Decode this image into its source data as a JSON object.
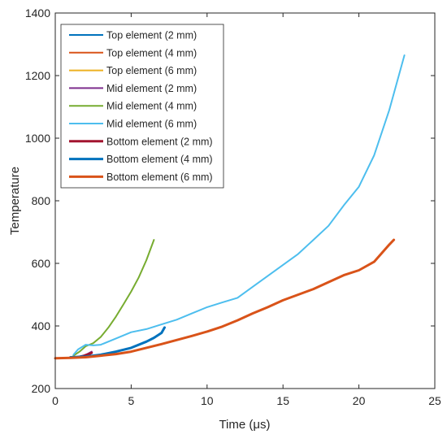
{
  "chart_data": {
    "type": "line",
    "title": "",
    "xlabel": "Time (μs)",
    "ylabel": "Temperature",
    "xlim": [
      0,
      25
    ],
    "ylim": [
      200,
      1400
    ],
    "xticks": [
      0,
      5,
      10,
      15,
      20,
      25
    ],
    "yticks": [
      200,
      400,
      600,
      800,
      1000,
      1200,
      1400
    ],
    "grid": false,
    "legend_position": "top-left",
    "series": [
      {
        "name": "Top element (2 mm)",
        "color": "#0072BD",
        "width": 2,
        "x": [
          1.2,
          1.6,
          2.0,
          2.3
        ],
        "y": [
          300,
          303,
          307,
          310
        ]
      },
      {
        "name": "Top element (4 mm)",
        "color": "#D95319",
        "width": 2,
        "x": [
          1.5,
          1.8,
          2.1,
          2.3
        ],
        "y": [
          300,
          302,
          305,
          307
        ]
      },
      {
        "name": "Top element (6 mm)",
        "color": "#EDB120",
        "width": 2,
        "x": [
          1.5,
          1.8,
          2.1
        ],
        "y": [
          300,
          301,
          303
        ]
      },
      {
        "name": "Mid element (2 mm)",
        "color": "#7E2F8E",
        "width": 2,
        "x": [
          1.5,
          1.8,
          2.1,
          2.4
        ],
        "y": [
          300,
          304,
          310,
          318
        ]
      },
      {
        "name": "Mid element (4 mm)",
        "color": "#77AC30",
        "width": 2,
        "x": [
          1.2,
          1.6,
          2.0,
          2.5,
          3.0,
          3.5,
          4.0,
          4.5,
          5.0,
          5.5,
          6.0,
          6.5
        ],
        "y": [
          305,
          318,
          335,
          345,
          365,
          395,
          430,
          470,
          510,
          555,
          610,
          675
        ]
      },
      {
        "name": "Mid element (6 mm)",
        "color": "#4DBEEE",
        "width": 2,
        "x": [
          1.2,
          1.5,
          2.0,
          2.5,
          3.0,
          4.0,
          5.0,
          6.0,
          7.0,
          8.0,
          9.0,
          10.0,
          11.0,
          12.0,
          13.0,
          14.0,
          15.0,
          16.0,
          17.0,
          18.0,
          19.0,
          20.0,
          21.0,
          22.0,
          23.0
        ],
        "y": [
          308,
          325,
          340,
          338,
          340,
          360,
          380,
          390,
          405,
          420,
          440,
          460,
          475,
          490,
          525,
          560,
          595,
          630,
          675,
          720,
          785,
          845,
          945,
          1090,
          1265
        ]
      },
      {
        "name": "Bottom element (2 mm)",
        "color": "#A2142F",
        "width": 3,
        "x": [
          1.5,
          1.8,
          2.1,
          2.4
        ],
        "y": [
          300,
          303,
          308,
          314
        ]
      },
      {
        "name": "Bottom element (4 mm)",
        "color": "#0072BD",
        "width": 3,
        "x": [
          1.0,
          2.0,
          3.0,
          4.0,
          5.0,
          6.0,
          6.5,
          7.0,
          7.2
        ],
        "y": [
          300,
          302,
          308,
          318,
          330,
          350,
          362,
          378,
          395
        ]
      },
      {
        "name": "Bottom element (6 mm)",
        "color": "#D95319",
        "width": 3,
        "x": [
          0,
          1.0,
          2.0,
          3.0,
          4.0,
          5.0,
          6.0,
          7.0,
          8.0,
          9.0,
          10.0,
          11.0,
          12.0,
          13.0,
          14.0,
          15.0,
          16.0,
          17.0,
          18.0,
          19.0,
          20.0,
          21.0,
          22.0,
          22.3
        ],
        "y": [
          297,
          298,
          300,
          305,
          310,
          318,
          330,
          342,
          355,
          368,
          382,
          398,
          418,
          440,
          460,
          482,
          500,
          518,
          540,
          562,
          578,
          605,
          660,
          675
        ]
      }
    ]
  }
}
